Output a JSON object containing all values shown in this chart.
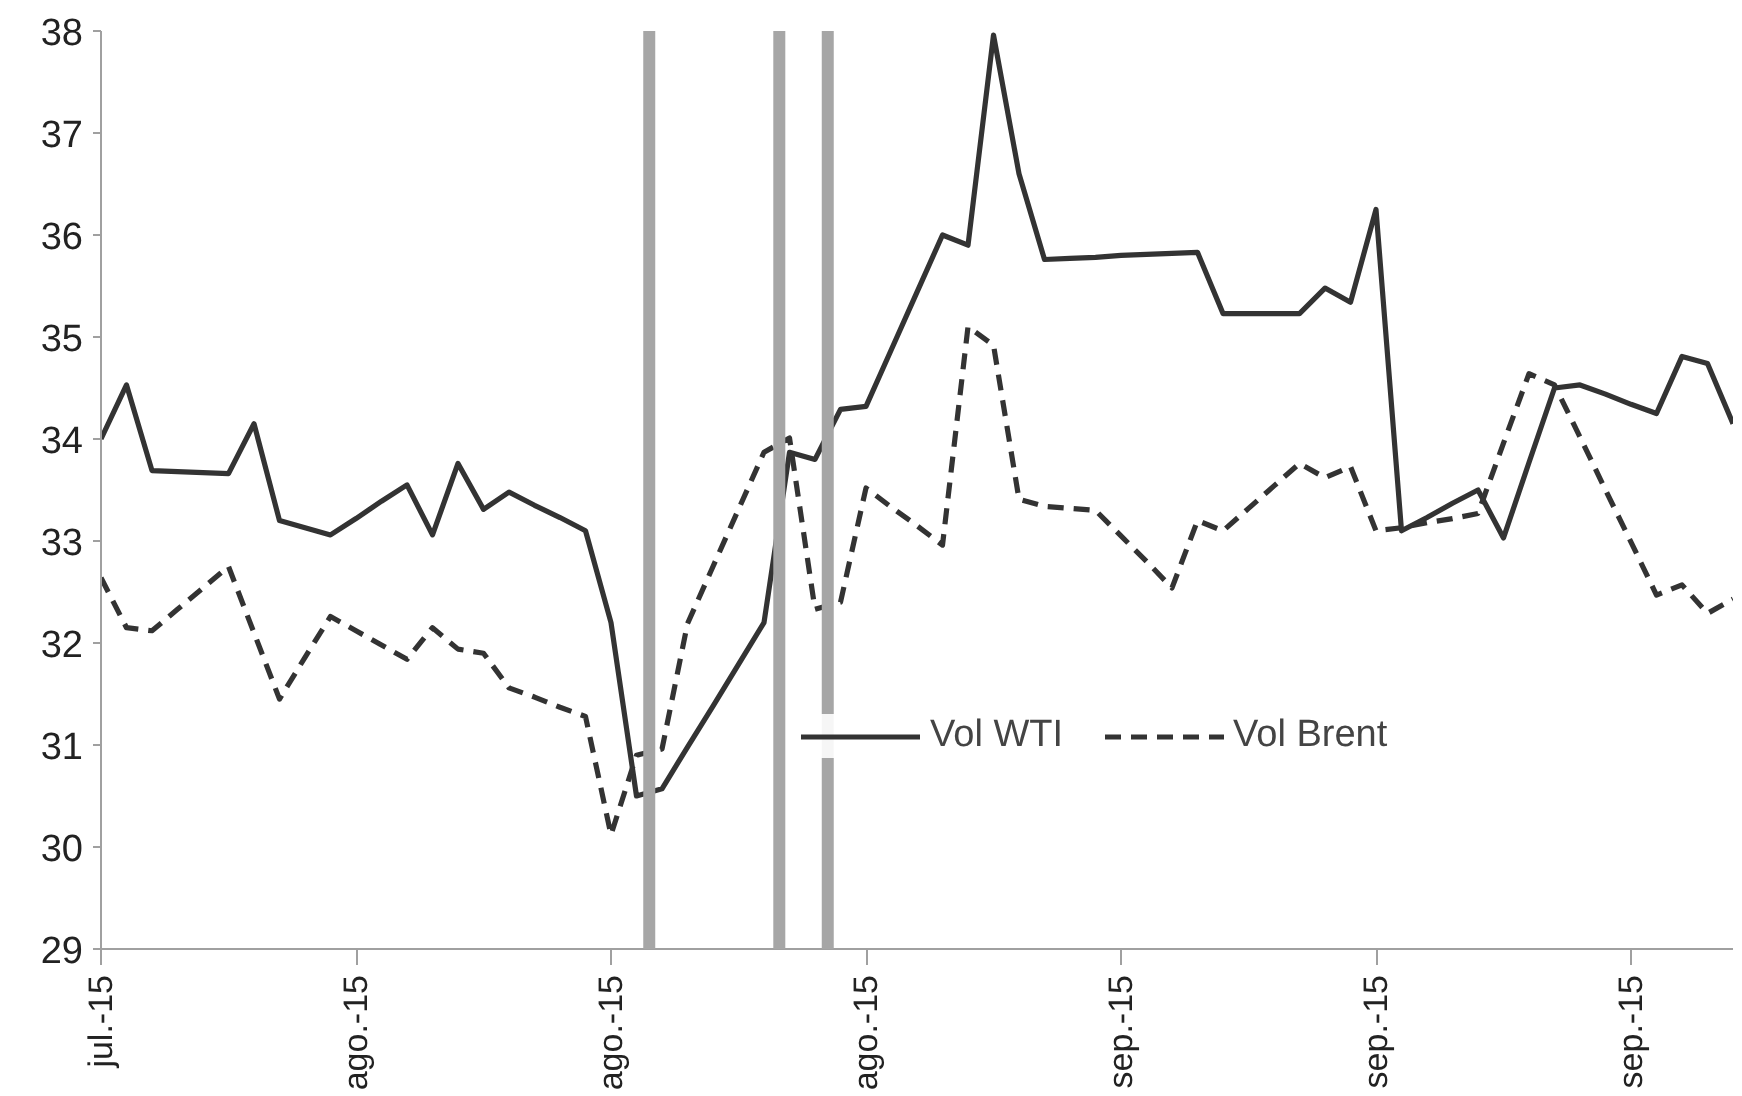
{
  "chart_data": {
    "type": "line",
    "ylim": [
      29,
      38
    ],
    "yticks": [
      29,
      30,
      31,
      32,
      33,
      34,
      35,
      36,
      37,
      38
    ],
    "categories": [
      "jul.-15",
      null,
      null,
      null,
      null,
      null,
      null,
      null,
      null,
      null,
      "ago.-15",
      null,
      null,
      null,
      null,
      null,
      null,
      null,
      null,
      null,
      "ago.-15",
      null,
      null,
      null,
      null,
      null,
      null,
      null,
      null,
      null,
      "ago.-15",
      null,
      null,
      null,
      null,
      null,
      null,
      null,
      null,
      null,
      "sep.-15",
      null,
      null,
      null,
      null,
      null,
      null,
      null,
      null,
      null,
      "sep.-15",
      null,
      null,
      null,
      null,
      null,
      null,
      null,
      null,
      null,
      "sep.-15",
      null,
      null,
      null,
      null
    ],
    "grid": false,
    "legend": "bottom right",
    "marker": "none",
    "series": [
      {
        "name": "Vol WTI",
        "color": "#333333",
        "line_style": "solid",
        "values": [
          34.0,
          34.53,
          33.69,
          33.68,
          33.67,
          33.66,
          34.15,
          33.2,
          33.13,
          33.06,
          33.22,
          33.39,
          33.55,
          33.06,
          33.76,
          33.31,
          33.48,
          33.35,
          33.23,
          33.1,
          32.2,
          30.5,
          30.57,
          30.98,
          31.38,
          31.79,
          32.2,
          33.87,
          33.8,
          34.29,
          34.32,
          34.88,
          35.44,
          36.0,
          35.9,
          37.96,
          36.6,
          35.76,
          35.77,
          35.78,
          35.8,
          35.81,
          35.82,
          35.83,
          35.23,
          35.23,
          35.23,
          35.23,
          35.48,
          35.34,
          36.25,
          33.1,
          33.23,
          33.37,
          33.5,
          33.03,
          33.77,
          34.5,
          34.53,
          34.44,
          34.34,
          34.25,
          34.81,
          34.74,
          34.15
        ]
      },
      {
        "name": "Vol Brent",
        "color": "#333333",
        "line_style": "dashed",
        "values": [
          32.64,
          32.15,
          32.12,
          32.33,
          32.54,
          32.75,
          32.1,
          31.45,
          31.86,
          32.26,
          32.12,
          31.98,
          31.84,
          32.15,
          31.94,
          31.9,
          31.56,
          31.47,
          31.37,
          31.28,
          30.12,
          30.9,
          30.96,
          32.19,
          32.75,
          33.31,
          33.87,
          34.01,
          32.33,
          32.4,
          33.52,
          33.33,
          33.15,
          32.96,
          35.1,
          34.92,
          33.41,
          33.34,
          33.32,
          33.3,
          33.05,
          32.8,
          32.54,
          33.2,
          33.1,
          33.32,
          33.54,
          33.76,
          33.62,
          33.73,
          33.1,
          33.13,
          33.18,
          33.22,
          33.27,
          33.96,
          34.64,
          34.53,
          34.02,
          33.5,
          32.99,
          32.47,
          32.57,
          32.29,
          32.43
        ]
      }
    ]
  }
}
